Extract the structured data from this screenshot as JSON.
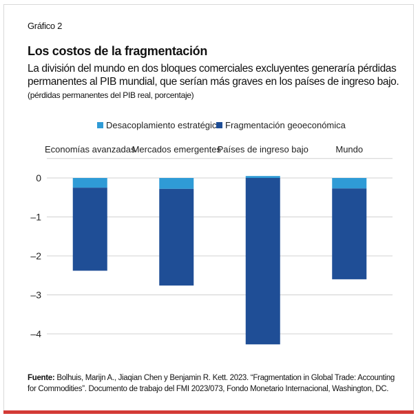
{
  "figure": {
    "label": "Gráfico 2",
    "title": "Los costos de la fragmentación",
    "subtitle": "La división del mundo en dos bloques comerciales excluyentes generaría pérdidas permanentes al PIB mundial, que serían más graves en los países de ingreso bajo.",
    "units": "(pérdidas permanentes del PIB real, porcentaje)",
    "source_label": "Fuente:",
    "source_text": "Bolhuis, Marijn A., Jiaqian Chen y Benjamin R. Kett. 2023. “Fragmentation in Global Trade: Accounting for Commodities”. Documento de trabajo del FMI 2023/073, Fondo Monetario Internacional, Washington, DC."
  },
  "chart_data": {
    "type": "bar",
    "stacked": true,
    "categories": [
      "Economías avanzadas",
      "Mercados emergentes",
      "Países de ingreso bajo",
      "Mundo"
    ],
    "series": [
      {
        "name": "Desacoplamiento estratégico",
        "color": "#2f9bd6",
        "values": [
          -0.25,
          -0.28,
          0.05,
          -0.27
        ]
      },
      {
        "name": "Fragmentación geoeconómica",
        "color": "#1f4e96",
        "values": [
          -2.13,
          -2.48,
          -4.27,
          -2.33
        ]
      }
    ],
    "yticks": [
      0,
      -1,
      -2,
      -3,
      -4
    ],
    "ytick_labels": [
      "0",
      "–1",
      "–2",
      "–3",
      "–4"
    ],
    "ylim": [
      -4.4,
      0.5
    ],
    "grid": true,
    "legend_position": "top"
  }
}
